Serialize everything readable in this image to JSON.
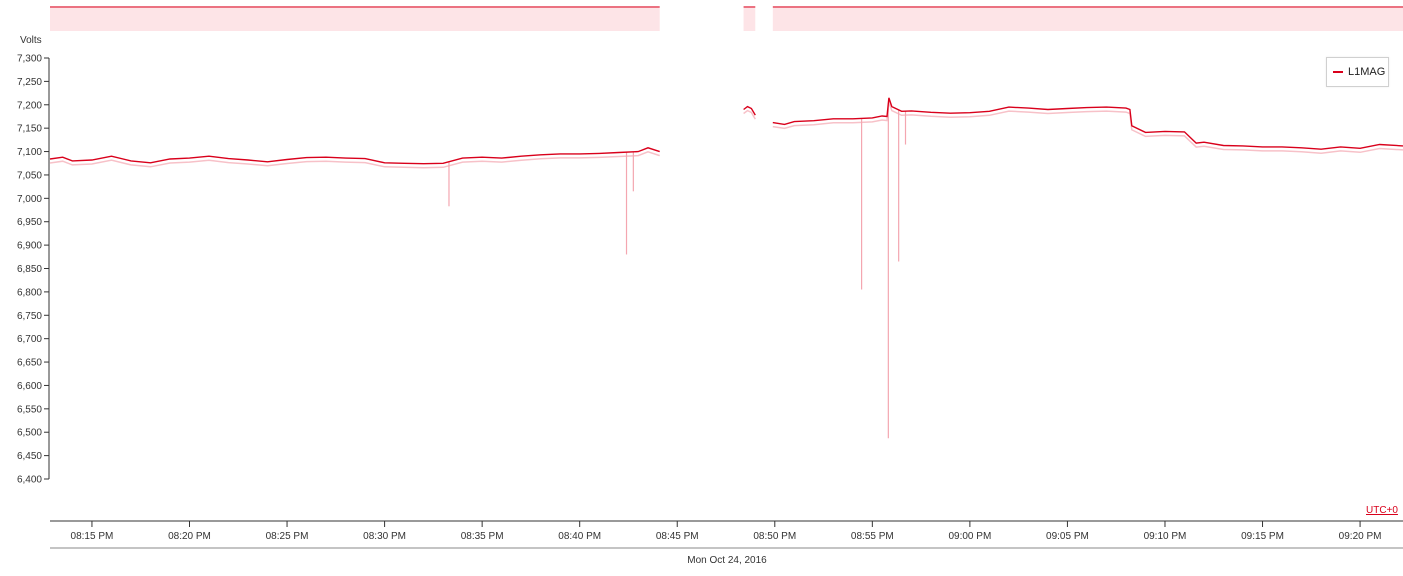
{
  "colors": {
    "series": "#d9001b",
    "series_light": "#f4a6b0",
    "navigator_fill": "#fde4e7",
    "axis": "#333333"
  },
  "legend": {
    "label": "L1MAG"
  },
  "utc_label": "UTC+0",
  "date_label": "Mon Oct 24, 2016",
  "chart_data": {
    "type": "line",
    "ylabel": "Volts",
    "ylim": [
      6400,
      7300
    ],
    "y_ticks": [
      "7,300",
      "7,250",
      "7,200",
      "7,150",
      "7,100",
      "7,050",
      "7,000",
      "6,950",
      "6,900",
      "6,850",
      "6,800",
      "6,750",
      "6,700",
      "6,650",
      "6,600",
      "6,550",
      "6,500",
      "6,450",
      "6,400"
    ],
    "x_range_minutes": [
      12.85,
      82.2
    ],
    "x_ticks": [
      {
        "label": "08:15 PM",
        "minute": 15
      },
      {
        "label": "08:20 PM",
        "minute": 20
      },
      {
        "label": "08:25 PM",
        "minute": 25
      },
      {
        "label": "08:30 PM",
        "minute": 30
      },
      {
        "label": "08:35 PM",
        "minute": 35
      },
      {
        "label": "08:40 PM",
        "minute": 40
      },
      {
        "label": "08:45 PM",
        "minute": 45
      },
      {
        "label": "08:50 PM",
        "minute": 50
      },
      {
        "label": "08:55 PM",
        "minute": 55
      },
      {
        "label": "09:00 PM",
        "minute": 60
      },
      {
        "label": "09:05 PM",
        "minute": 65
      },
      {
        "label": "09:10 PM",
        "minute": 70
      },
      {
        "label": "09:15 PM",
        "minute": 75
      },
      {
        "label": "09:20 PM",
        "minute": 80
      }
    ],
    "series": [
      {
        "name": "L1MAG",
        "segments": [
          [
            [
              12.85,
              7084
            ],
            [
              13.5,
              7088
            ],
            [
              14,
              7080
            ],
            [
              15,
              7082
            ],
            [
              16,
              7090
            ],
            [
              17,
              7080
            ],
            [
              18,
              7076
            ],
            [
              19,
              7084
            ],
            [
              20,
              7086
            ],
            [
              21,
              7090
            ],
            [
              22,
              7085
            ],
            [
              23,
              7082
            ],
            [
              24,
              7078
            ],
            [
              25,
              7083
            ],
            [
              26,
              7087
            ],
            [
              27,
              7088
            ],
            [
              28,
              7086
            ],
            [
              29,
              7085
            ],
            [
              30,
              7076
            ],
            [
              31,
              7075
            ],
            [
              32,
              7074
            ],
            [
              33,
              7075
            ],
            [
              34,
              7086
            ],
            [
              35,
              7088
            ],
            [
              36,
              7086
            ],
            [
              37,
              7090
            ],
            [
              38,
              7093
            ],
            [
              39,
              7095
            ],
            [
              40,
              7095
            ],
            [
              41,
              7096
            ],
            [
              42,
              7098
            ],
            [
              43,
              7100
            ],
            [
              43.5,
              7108
            ],
            [
              44.1,
              7100
            ]
          ],
          [
            [
              48.4,
              7190
            ],
            [
              48.6,
              7196
            ],
            [
              48.8,
              7192
            ],
            [
              49.0,
              7178
            ]
          ],
          [
            [
              49.9,
              7162
            ],
            [
              50.5,
              7158
            ],
            [
              51,
              7164
            ],
            [
              52,
              7166
            ],
            [
              53,
              7170
            ],
            [
              54,
              7170
            ],
            [
              55,
              7172
            ],
            [
              55.5,
              7176
            ],
            [
              55.75,
              7175
            ],
            [
              55.85,
              7215
            ],
            [
              56,
              7196
            ],
            [
              56.5,
              7186
            ],
            [
              57,
              7187
            ],
            [
              58,
              7184
            ],
            [
              59,
              7182
            ],
            [
              60,
              7183
            ],
            [
              61,
              7186
            ],
            [
              62,
              7195
            ],
            [
              63,
              7193
            ],
            [
              64,
              7190
            ],
            [
              65,
              7192
            ],
            [
              66,
              7194
            ],
            [
              67,
              7195
            ],
            [
              68,
              7193
            ],
            [
              68.2,
              7190
            ],
            [
              68.3,
              7155
            ],
            [
              69,
              7141
            ],
            [
              70,
              7143
            ],
            [
              71,
              7142
            ],
            [
              71.3,
              7130
            ],
            [
              71.6,
              7118
            ],
            [
              72,
              7120
            ],
            [
              73,
              7113
            ],
            [
              74,
              7112
            ],
            [
              75,
              7110
            ],
            [
              76,
              7110
            ],
            [
              77,
              7108
            ],
            [
              78,
              7105
            ],
            [
              79,
              7110
            ],
            [
              80,
              7107
            ],
            [
              81,
              7115
            ],
            [
              82.2,
              7112
            ]
          ]
        ],
        "min_spikes": [
          {
            "minute": 33.3,
            "value": 6983
          },
          {
            "minute": 42.4,
            "value": 6880
          },
          {
            "minute": 42.75,
            "value": 7015
          },
          {
            "minute": 54.45,
            "value": 6805
          },
          {
            "minute": 55.82,
            "value": 6487
          },
          {
            "minute": 56.35,
            "value": 6865
          },
          {
            "minute": 56.7,
            "value": 7115
          }
        ]
      }
    ]
  }
}
